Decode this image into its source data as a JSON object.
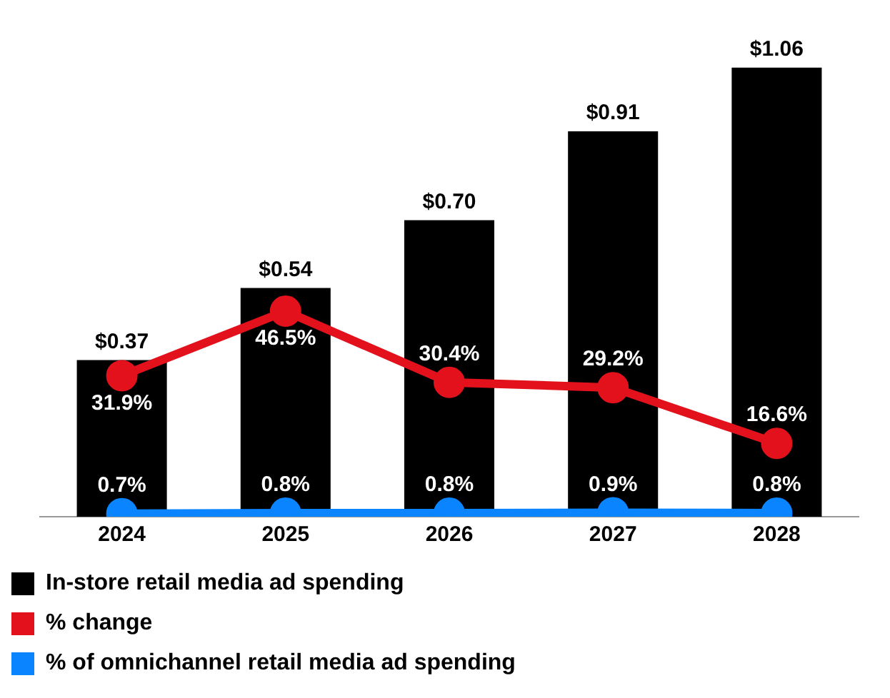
{
  "chart_data": {
    "type": "bar",
    "categories": [
      "2024",
      "2025",
      "2026",
      "2027",
      "2028"
    ],
    "series": [
      {
        "name": "In-store retail media ad spending",
        "color": "#000000",
        "values": [
          0.37,
          0.54,
          0.7,
          0.91,
          1.06
        ],
        "value_labels": [
          "$0.37",
          "$0.54",
          "$0.70",
          "$0.91",
          "$1.06"
        ]
      },
      {
        "name": "% change",
        "type": "line",
        "axis": "y2",
        "color": "#e3111b",
        "values": [
          31.9,
          46.5,
          30.4,
          29.2,
          16.6
        ],
        "value_labels": [
          "31.9%",
          "46.5%",
          "30.4%",
          "29.2%",
          "16.6%"
        ]
      },
      {
        "name": "% of omnichannel retail media ad spending",
        "type": "line",
        "axis": "y2",
        "color": "#0a84ff",
        "values": [
          0.7,
          0.8,
          0.8,
          0.9,
          0.8
        ],
        "value_labels": [
          "0.7%",
          "0.8%",
          "0.8%",
          "0.9%",
          "0.8%"
        ]
      }
    ],
    "legend": "bottom",
    "marker": "circle",
    "grid": false
  }
}
